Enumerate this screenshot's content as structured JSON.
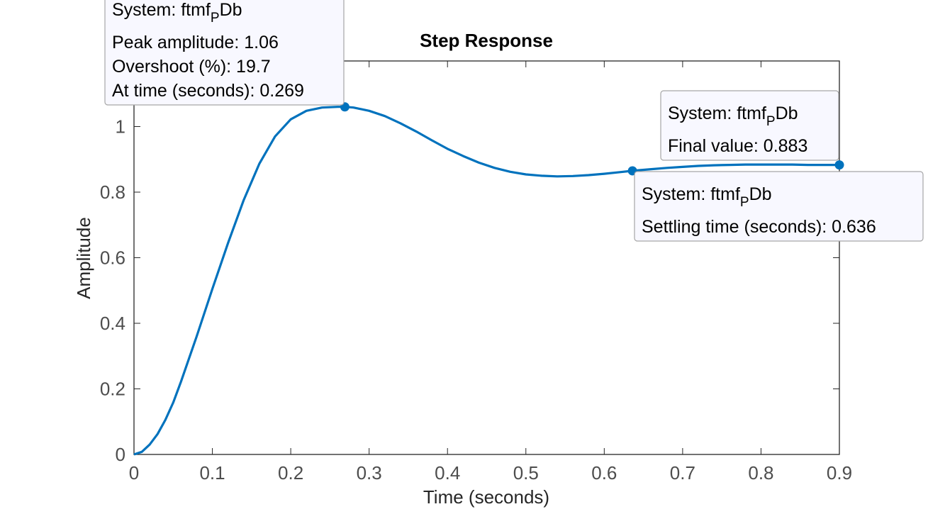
{
  "chart_data": {
    "type": "line",
    "title": "Step Response",
    "xlabel": "Time (seconds)",
    "ylabel": "Amplitude",
    "xlim": [
      0,
      0.9
    ],
    "ylim": [
      0,
      1.2
    ],
    "xticks": [
      0,
      0.1,
      0.2,
      0.3,
      0.4,
      0.5,
      0.6,
      0.7,
      0.8,
      0.9
    ],
    "xtick_labels": [
      "0",
      "0.1",
      "0.2",
      "0.3",
      "0.4",
      "0.5",
      "0.6",
      "0.7",
      "0.8",
      "0.9"
    ],
    "yticks": [
      0,
      0.2,
      0.4,
      0.6,
      0.8,
      1
    ],
    "ytick_labels": [
      "0",
      "0.2",
      "0.4",
      "0.6",
      "0.8",
      "1"
    ],
    "grid": false,
    "series": [
      {
        "color": "#0072BD",
        "x": [
          0,
          0.01,
          0.02,
          0.03,
          0.04,
          0.05,
          0.06,
          0.08,
          0.1,
          0.12,
          0.14,
          0.16,
          0.18,
          0.2,
          0.22,
          0.24,
          0.26,
          0.269,
          0.28,
          0.3,
          0.32,
          0.34,
          0.36,
          0.38,
          0.4,
          0.42,
          0.44,
          0.46,
          0.48,
          0.5,
          0.52,
          0.54,
          0.56,
          0.58,
          0.6,
          0.62,
          0.636,
          0.66,
          0.68,
          0.7,
          0.72,
          0.74,
          0.76,
          0.78,
          0.8,
          0.82,
          0.84,
          0.86,
          0.88,
          0.9
        ],
        "y": [
          0,
          0.008,
          0.03,
          0.062,
          0.105,
          0.158,
          0.222,
          0.36,
          0.505,
          0.645,
          0.776,
          0.887,
          0.97,
          1.022,
          1.048,
          1.058,
          1.06,
          1.06,
          1.058,
          1.048,
          1.032,
          1.01,
          0.985,
          0.958,
          0.932,
          0.91,
          0.89,
          0.874,
          0.862,
          0.854,
          0.85,
          0.848,
          0.849,
          0.852,
          0.856,
          0.861,
          0.865,
          0.87,
          0.874,
          0.877,
          0.88,
          0.882,
          0.883,
          0.884,
          0.884,
          0.884,
          0.884,
          0.883,
          0.883,
          0.883
        ]
      }
    ],
    "settling_band": [
      0.865,
      0.901
    ],
    "annotations": [
      {
        "kind": "peak",
        "x": 0.269,
        "y": 1.06,
        "system_prefix": "System: ftmf",
        "system_sub": "P",
        "system_suffix": "Db",
        "lines": [
          "Peak amplitude: 1.06",
          "Overshoot (%): 19.7",
          "At time (seconds): 0.269"
        ]
      },
      {
        "kind": "final",
        "x": 0.9,
        "y": 0.883,
        "system_prefix": "System: ftmf",
        "system_sub": "P",
        "system_suffix": "Db",
        "lines": [
          "Final value: 0.883"
        ]
      },
      {
        "kind": "settling",
        "x": 0.636,
        "y": 0.865,
        "system_prefix": "System: ftmf",
        "system_sub": "P",
        "system_suffix": "Db",
        "lines": [
          "Settling time (seconds): 0.636"
        ]
      }
    ]
  }
}
